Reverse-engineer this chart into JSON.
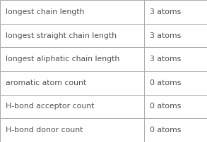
{
  "rows": [
    {
      "label": "longest chain length",
      "value": "3 atoms"
    },
    {
      "label": "longest straight chain length",
      "value": "3 atoms"
    },
    {
      "label": "longest aliphatic chain length",
      "value": "3 atoms"
    },
    {
      "label": "aromatic atom count",
      "value": "0 atoms"
    },
    {
      "label": "H-bond acceptor count",
      "value": "0 atoms"
    },
    {
      "label": "H-bond donor count",
      "value": "0 atoms"
    }
  ],
  "col_split": 0.695,
  "bg_color": "#ffffff",
  "border_color": "#aaaaaa",
  "text_color": "#505050",
  "label_fontsize": 7.8,
  "value_fontsize": 7.8,
  "fig_width": 2.93,
  "fig_height": 2.02,
  "dpi": 100
}
